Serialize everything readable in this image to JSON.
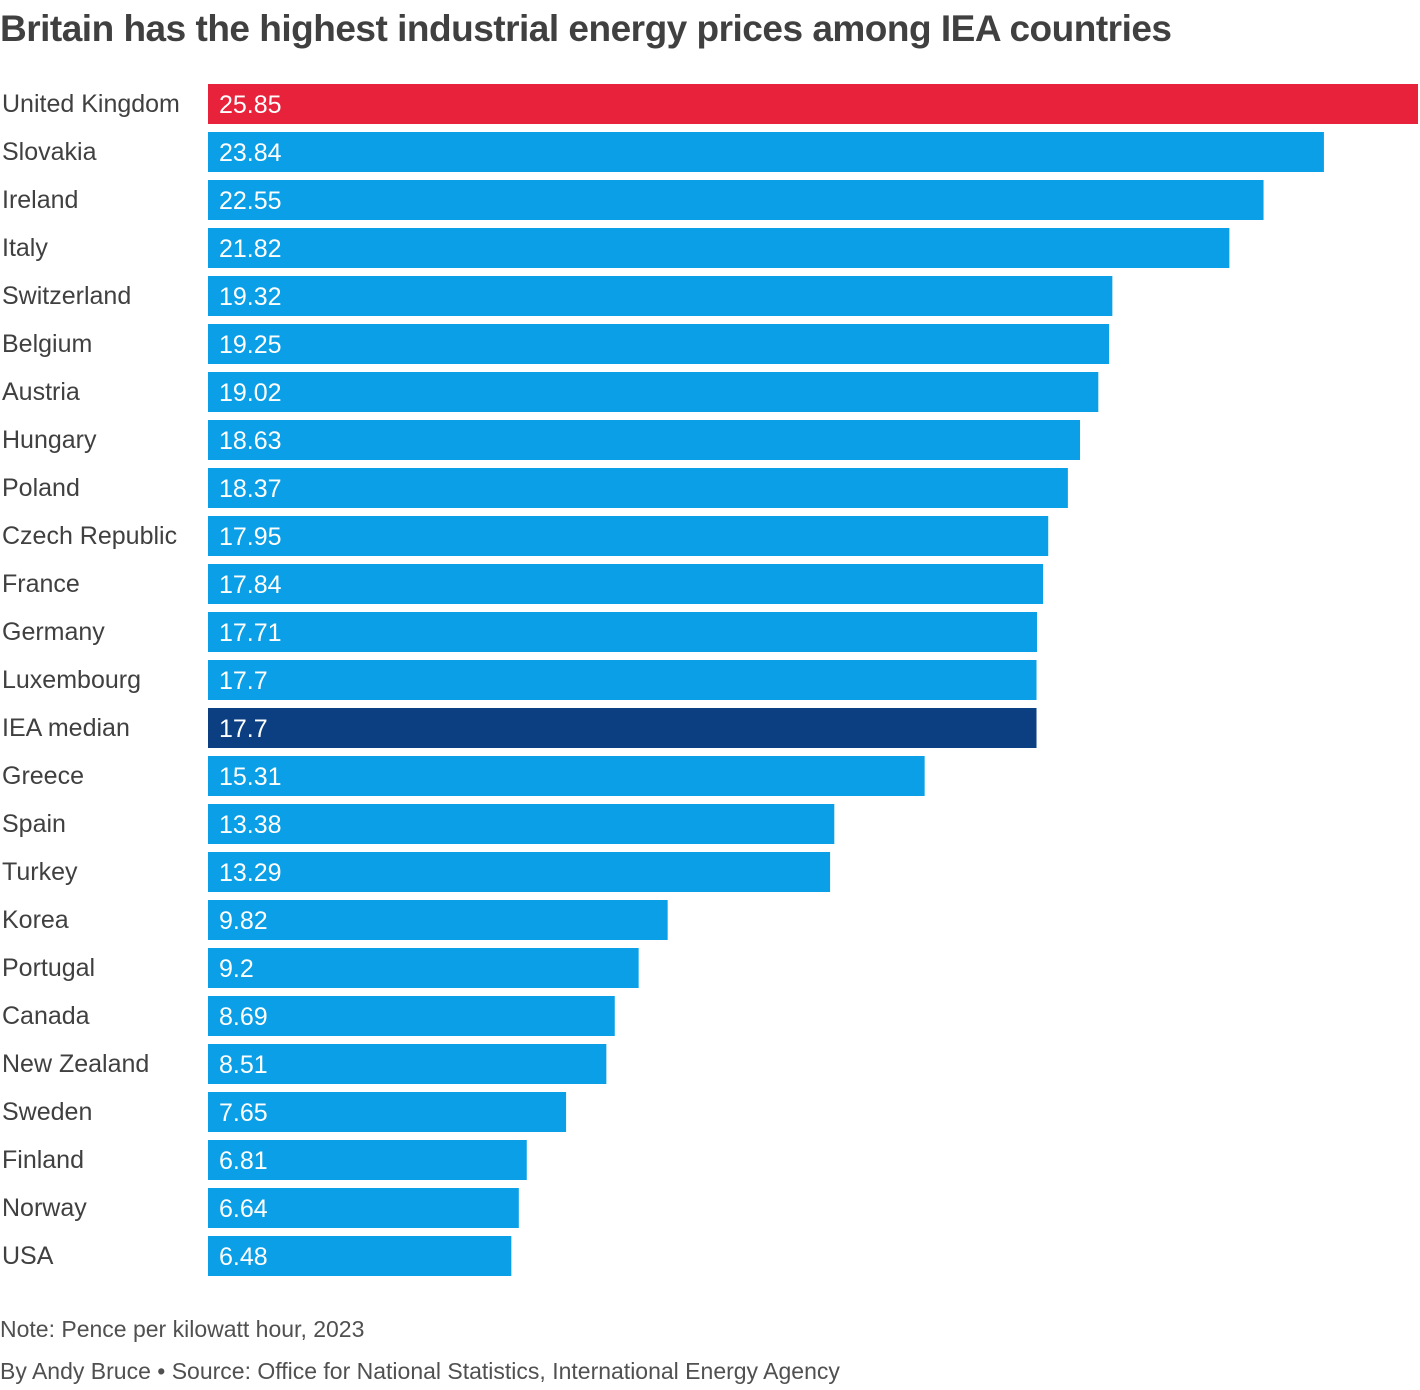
{
  "chart_data": {
    "type": "bar",
    "orientation": "horizontal",
    "title": "Britain has the highest industrial energy prices among IEA countries",
    "categories": [
      "United Kingdom",
      "Slovakia",
      "Ireland",
      "Italy",
      "Switzerland",
      "Belgium",
      "Austria",
      "Hungary",
      "Poland",
      "Czech Republic",
      "France",
      "Germany",
      "Luxembourg",
      "IEA median",
      "Greece",
      "Spain",
      "Turkey",
      "Korea",
      "Portugal",
      "Canada",
      "New Zealand",
      "Sweden",
      "Finland",
      "Norway",
      "USA"
    ],
    "values": [
      25.85,
      23.84,
      22.55,
      21.82,
      19.32,
      19.25,
      19.02,
      18.63,
      18.37,
      17.95,
      17.84,
      17.71,
      17.7,
      17.7,
      15.31,
      13.38,
      13.29,
      9.82,
      9.2,
      8.69,
      8.51,
      7.65,
      6.81,
      6.64,
      6.48
    ],
    "value_labels": [
      "25.85",
      "23.84",
      "22.55",
      "21.82",
      "19.32",
      "19.25",
      "19.02",
      "18.63",
      "18.37",
      "17.95",
      "17.84",
      "17.71",
      "17.7",
      "17.7",
      "15.31",
      "13.38",
      "13.29",
      "9.82",
      "9.2",
      "8.69",
      "8.51",
      "7.65",
      "6.81",
      "6.64",
      "6.48"
    ],
    "highlight": {
      "United Kingdom": "#e8223a",
      "IEA median": "#0b3f82"
    },
    "default_color": "#0a9fe6",
    "xlim": [
      0,
      25.85
    ],
    "grid": false,
    "legend": "none",
    "note": "Note: Pence per kilowatt hour, 2023",
    "credit": "By Andy Bruce • Source: Office for National Statistics, International Energy Agency"
  }
}
